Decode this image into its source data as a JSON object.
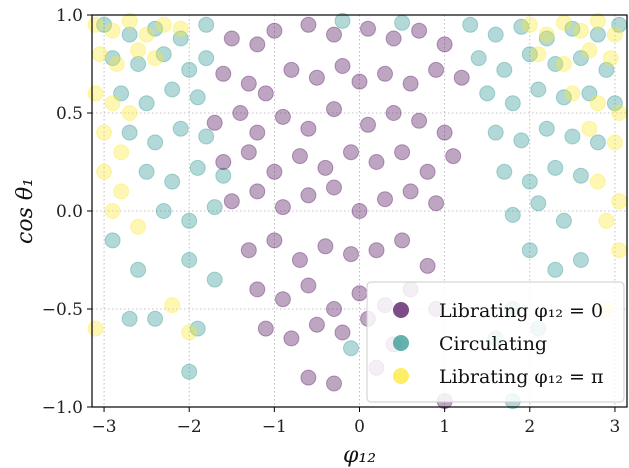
{
  "chart_data": {
    "type": "scatter",
    "xlabel": "φ₁₂",
    "ylabel": "cos θ₁",
    "xlim": [
      -3.1416,
      3.1416
    ],
    "ylim": [
      -1.0,
      1.0
    ],
    "xticks": [
      -3,
      -2,
      -1,
      0,
      1,
      2,
      3
    ],
    "yticks": [
      -1.0,
      -0.5,
      0.0,
      0.5,
      1.0
    ],
    "xtick_labels": [
      "−3",
      "−2",
      "−1",
      "0",
      "1",
      "2",
      "3"
    ],
    "ytick_labels": [
      "−1.0",
      "−0.5",
      "0.0",
      "0.5",
      "1.0"
    ],
    "grid": true,
    "legend_position": "lower-right",
    "colors": {
      "librating_0": "#440154",
      "circulating": "#21918c",
      "librating_pi": "#fde725"
    },
    "series": [
      {
        "name": "Librating φ₁₂ = 0",
        "legend_label": "Librating φ₁₂ = 0",
        "color": "#440154",
        "points": [
          [
            -1.5,
            0.88
          ],
          [
            -1.2,
            0.85
          ],
          [
            -1.0,
            0.92
          ],
          [
            -0.6,
            0.95
          ],
          [
            -0.3,
            0.9
          ],
          [
            0.1,
            0.93
          ],
          [
            0.4,
            0.88
          ],
          [
            0.7,
            0.92
          ],
          [
            1.0,
            0.85
          ],
          [
            -1.6,
            0.7
          ],
          [
            -1.3,
            0.65
          ],
          [
            -1.1,
            0.6
          ],
          [
            -0.8,
            0.72
          ],
          [
            -0.5,
            0.68
          ],
          [
            -0.2,
            0.74
          ],
          [
            0.0,
            0.66
          ],
          [
            0.3,
            0.7
          ],
          [
            0.6,
            0.65
          ],
          [
            0.9,
            0.72
          ],
          [
            1.2,
            0.68
          ],
          [
            -1.7,
            0.45
          ],
          [
            -1.4,
            0.5
          ],
          [
            -1.2,
            0.4
          ],
          [
            -0.9,
            0.48
          ],
          [
            -0.6,
            0.42
          ],
          [
            -0.3,
            0.52
          ],
          [
            0.1,
            0.44
          ],
          [
            0.4,
            0.5
          ],
          [
            0.7,
            0.46
          ],
          [
            1.0,
            0.4
          ],
          [
            -1.6,
            0.25
          ],
          [
            -1.3,
            0.3
          ],
          [
            -1.0,
            0.2
          ],
          [
            -0.7,
            0.28
          ],
          [
            -0.4,
            0.22
          ],
          [
            -0.1,
            0.3
          ],
          [
            0.2,
            0.25
          ],
          [
            0.5,
            0.3
          ],
          [
            0.8,
            0.2
          ],
          [
            1.1,
            0.28
          ],
          [
            -1.5,
            0.05
          ],
          [
            -1.2,
            0.1
          ],
          [
            -0.9,
            0.02
          ],
          [
            -0.6,
            0.08
          ],
          [
            -0.3,
            0.12
          ],
          [
            0.0,
            0.0
          ],
          [
            0.3,
            0.06
          ],
          [
            0.6,
            0.1
          ],
          [
            0.9,
            0.04
          ],
          [
            -1.3,
            -0.2
          ],
          [
            -1.0,
            -0.15
          ],
          [
            -0.7,
            -0.25
          ],
          [
            -0.4,
            -0.18
          ],
          [
            -0.1,
            -0.22
          ],
          [
            0.2,
            -0.2
          ],
          [
            0.5,
            -0.15
          ],
          [
            0.8,
            -0.28
          ],
          [
            -1.2,
            -0.4
          ],
          [
            -0.9,
            -0.45
          ],
          [
            -0.6,
            -0.38
          ],
          [
            -0.3,
            -0.5
          ],
          [
            0.0,
            -0.42
          ],
          [
            0.3,
            -0.48
          ],
          [
            0.6,
            -0.4
          ],
          [
            0.9,
            -0.5
          ],
          [
            -1.1,
            -0.6
          ],
          [
            -0.8,
            -0.65
          ],
          [
            -0.5,
            -0.58
          ],
          [
            -0.2,
            -0.62
          ],
          [
            0.1,
            -0.55
          ],
          [
            0.4,
            -0.68
          ],
          [
            -0.6,
            -0.85
          ],
          [
            -0.3,
            -0.88
          ],
          [
            0.2,
            -0.8
          ],
          [
            1.0,
            -0.97
          ]
        ]
      },
      {
        "name": "Circulating",
        "legend_label": "Circulating",
        "color": "#21918c",
        "points": [
          [
            -3.0,
            0.95
          ],
          [
            -2.7,
            0.9
          ],
          [
            -2.4,
            0.93
          ],
          [
            -2.1,
            0.88
          ],
          [
            -1.8,
            0.95
          ],
          [
            -0.2,
            0.97
          ],
          [
            0.5,
            0.96
          ],
          [
            1.3,
            0.95
          ],
          [
            1.6,
            0.9
          ],
          [
            1.9,
            0.94
          ],
          [
            2.2,
            0.88
          ],
          [
            2.5,
            0.93
          ],
          [
            2.8,
            0.9
          ],
          [
            3.05,
            0.95
          ],
          [
            -2.9,
            0.78
          ],
          [
            -2.6,
            0.75
          ],
          [
            -2.3,
            0.8
          ],
          [
            -2.0,
            0.72
          ],
          [
            -1.8,
            0.78
          ],
          [
            1.4,
            0.78
          ],
          [
            1.7,
            0.72
          ],
          [
            2.0,
            0.8
          ],
          [
            2.3,
            0.75
          ],
          [
            2.6,
            0.78
          ],
          [
            2.9,
            0.72
          ],
          [
            -2.8,
            0.6
          ],
          [
            -2.5,
            0.55
          ],
          [
            -2.2,
            0.62
          ],
          [
            -1.9,
            0.58
          ],
          [
            1.5,
            0.6
          ],
          [
            1.8,
            0.55
          ],
          [
            2.1,
            0.62
          ],
          [
            2.4,
            0.58
          ],
          [
            2.7,
            0.6
          ],
          [
            3.0,
            0.55
          ],
          [
            -2.7,
            0.4
          ],
          [
            -2.4,
            0.35
          ],
          [
            -2.1,
            0.42
          ],
          [
            -1.8,
            0.38
          ],
          [
            1.6,
            0.4
          ],
          [
            1.9,
            0.36
          ],
          [
            2.2,
            0.42
          ],
          [
            2.5,
            0.38
          ],
          [
            2.8,
            0.35
          ],
          [
            -2.5,
            0.2
          ],
          [
            -2.2,
            0.15
          ],
          [
            -1.9,
            0.22
          ],
          [
            -1.6,
            0.18
          ],
          [
            1.7,
            0.2
          ],
          [
            2.0,
            0.15
          ],
          [
            2.3,
            0.22
          ],
          [
            2.6,
            0.18
          ],
          [
            -2.3,
            0.0
          ],
          [
            -2.0,
            -0.05
          ],
          [
            -1.7,
            0.02
          ],
          [
            1.8,
            -0.02
          ],
          [
            2.1,
            0.04
          ],
          [
            2.4,
            -0.05
          ],
          [
            -2.9,
            -0.15
          ],
          [
            -2.6,
            -0.3
          ],
          [
            -2.0,
            -0.25
          ],
          [
            -1.7,
            -0.35
          ],
          [
            2.0,
            -0.2
          ],
          [
            2.3,
            -0.3
          ],
          [
            2.6,
            -0.25
          ],
          [
            -2.7,
            -0.55
          ],
          [
            -2.4,
            -0.55
          ],
          [
            -1.9,
            -0.6
          ],
          [
            -2.0,
            -0.82
          ],
          [
            1.8,
            -0.5
          ],
          [
            2.1,
            -0.6
          ],
          [
            1.6,
            -0.65
          ],
          [
            1.8,
            -0.97
          ],
          [
            -0.1,
            -0.7
          ]
        ]
      },
      {
        "name": "Librating φ₁₂ = π",
        "legend_label": "Librating φ₁₂ = π",
        "color": "#fde725",
        "points": [
          [
            -3.1,
            0.95
          ],
          [
            -2.9,
            0.92
          ],
          [
            -2.7,
            0.97
          ],
          [
            -2.5,
            0.9
          ],
          [
            -2.3,
            0.95
          ],
          [
            -2.1,
            0.93
          ],
          [
            2.0,
            0.95
          ],
          [
            2.2,
            0.9
          ],
          [
            2.4,
            0.96
          ],
          [
            2.6,
            0.92
          ],
          [
            2.8,
            0.97
          ],
          [
            3.0,
            0.9
          ],
          [
            -3.05,
            0.8
          ],
          [
            -2.85,
            0.75
          ],
          [
            -2.6,
            0.82
          ],
          [
            -2.4,
            0.78
          ],
          [
            2.1,
            0.8
          ],
          [
            2.4,
            0.75
          ],
          [
            2.7,
            0.82
          ],
          [
            2.95,
            0.78
          ],
          [
            -3.1,
            0.6
          ],
          [
            -2.9,
            0.55
          ],
          [
            -2.7,
            0.5
          ],
          [
            2.5,
            0.6
          ],
          [
            2.8,
            0.55
          ],
          [
            3.05,
            0.5
          ],
          [
            -3.0,
            0.4
          ],
          [
            -2.8,
            0.3
          ],
          [
            2.7,
            0.42
          ],
          [
            3.0,
            0.35
          ],
          [
            -3.0,
            0.2
          ],
          [
            -2.8,
            0.1
          ],
          [
            2.8,
            0.15
          ],
          [
            3.05,
            0.05
          ],
          [
            -2.9,
            0.0
          ],
          [
            -2.6,
            -0.08
          ],
          [
            2.9,
            -0.05
          ],
          [
            3.05,
            -0.2
          ],
          [
            -2.2,
            -0.48
          ],
          [
            -3.1,
            -0.6
          ],
          [
            -2.0,
            -0.62
          ],
          [
            2.9,
            -0.5
          ]
        ]
      }
    ]
  }
}
